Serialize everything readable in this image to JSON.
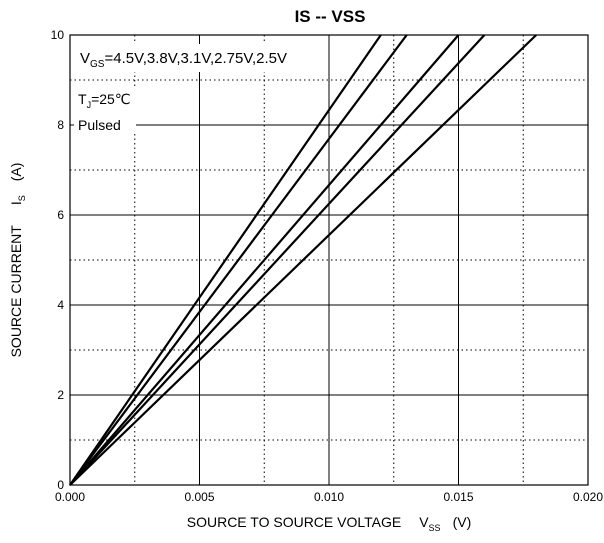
{
  "chart_data": {
    "type": "line",
    "title": "IS -- VSS",
    "xlabel": {
      "text": "SOURCE TO SOURCE VOLTAGE",
      "symbol": "V",
      "symbol_sub": "SS",
      "unit": "(V)"
    },
    "ylabel": {
      "text": "SOURCE CURRENT",
      "symbol": "I",
      "symbol_sub": "S",
      "unit": "(A)"
    },
    "xlim": [
      0,
      0.02
    ],
    "ylim": [
      0,
      10
    ],
    "x_ticks": [
      "0.000",
      "0.005",
      "0.010",
      "0.015",
      "0.020"
    ],
    "y_ticks": [
      "0",
      "2",
      "4",
      "6",
      "8",
      "10"
    ],
    "grid": {
      "major": "solid",
      "minor": "dotted",
      "x_minor_step": 0.0025,
      "y_minor_step": 1
    },
    "annotations": {
      "vgs": {
        "prefix": "V",
        "sub": "GS",
        "text": "=4.5V,3.8V,3.1V,2.75V,2.5V"
      },
      "tj": {
        "prefix": "T",
        "sub": "J",
        "text": "=25℃"
      },
      "pulsed": "Pulsed"
    },
    "series": [
      {
        "x": [
          0,
          0.012
        ],
        "y": [
          0,
          10
        ]
      },
      {
        "x": [
          0,
          0.013
        ],
        "y": [
          0,
          10
        ]
      },
      {
        "x": [
          0,
          0.015
        ],
        "y": [
          0,
          10
        ]
      },
      {
        "x": [
          0,
          0.016
        ],
        "y": [
          0,
          10
        ]
      },
      {
        "x": [
          0,
          0.018
        ],
        "y": [
          0,
          10
        ]
      }
    ],
    "colors": {
      "line": "#000000",
      "grid": "#000000"
    }
  }
}
